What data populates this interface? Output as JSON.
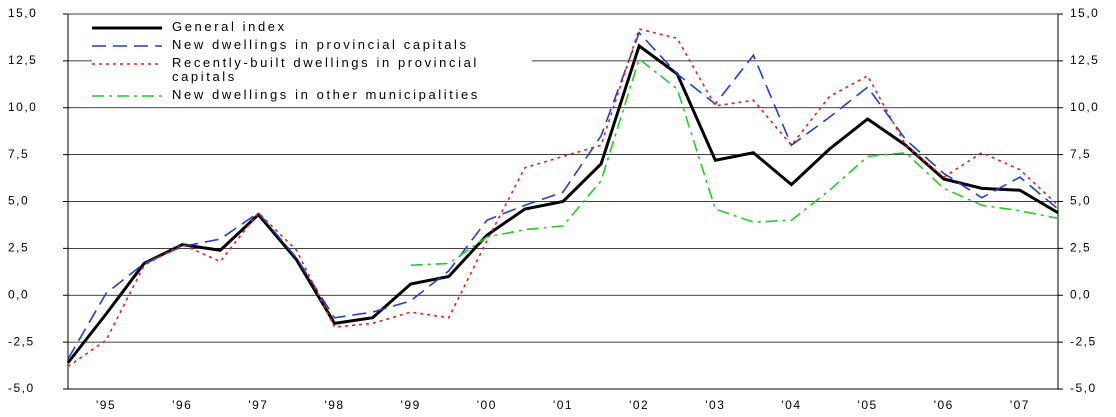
{
  "chart_data": {
    "type": "line",
    "categories": [
      null,
      "'95",
      null,
      "'96",
      null,
      "'97",
      null,
      "'98",
      null,
      "'99",
      null,
      "'00",
      null,
      "'01",
      null,
      "'02",
      null,
      "'03",
      null,
      "'04",
      null,
      "'05",
      null,
      "'06",
      null,
      "'07",
      null
    ],
    "series": [
      {
        "name": "General index",
        "color": "#000000",
        "dash": "solid",
        "values": [
          -3.6,
          -1.0,
          1.7,
          2.7,
          2.4,
          4.3,
          1.9,
          -1.5,
          -1.2,
          0.6,
          1.0,
          3.2,
          4.6,
          5.0,
          7.0,
          13.3,
          11.8,
          7.2,
          7.6,
          5.9,
          7.8,
          9.4,
          8.0,
          6.2,
          5.7,
          5.6,
          4.4
        ]
      },
      {
        "name": "New dwellings in provincial capitals",
        "color": "#1f3fd0",
        "dash": "dashed",
        "values": [
          -3.4,
          0.1,
          1.7,
          2.6,
          3.0,
          4.4,
          2.0,
          -1.2,
          -0.9,
          -0.3,
          1.3,
          4.0,
          4.8,
          5.5,
          8.5,
          14.0,
          11.8,
          10.2,
          12.8,
          8.0,
          9.5,
          11.1,
          8.3,
          6.5,
          5.2,
          6.3,
          4.6
        ]
      },
      {
        "name": "Recently-built dwellings in provincial capitals",
        "color": "#e02020",
        "dash": "dotted",
        "values": [
          -3.8,
          -2.4,
          1.6,
          2.7,
          1.8,
          4.4,
          2.4,
          -1.7,
          -1.5,
          -0.9,
          -1.2,
          2.9,
          6.8,
          7.4,
          8.0,
          14.2,
          13.7,
          10.1,
          10.4,
          8.0,
          10.6,
          11.7,
          8.0,
          6.3,
          7.6,
          6.7,
          4.8
        ]
      },
      {
        "name": "New dwellings in other municipalities",
        "color": "#22cc22",
        "dash": "dashdot",
        "values": [
          null,
          null,
          null,
          null,
          null,
          null,
          null,
          null,
          null,
          1.6,
          1.7,
          3.1,
          3.5,
          3.7,
          6.1,
          12.6,
          11.0,
          4.6,
          3.9,
          4.0,
          5.6,
          7.4,
          7.6,
          5.7,
          4.8,
          4.5,
          4.1
        ]
      }
    ],
    "ylim": [
      -5,
      15
    ],
    "yticks": [
      {
        "value": -5,
        "label": "-5,0"
      },
      {
        "value": -2.5,
        "label": "-2,5"
      },
      {
        "value": 0,
        "label": "0,0"
      },
      {
        "value": 2.5,
        "label": "2,5"
      },
      {
        "value": 5,
        "label": "5,0"
      },
      {
        "value": 7.5,
        "label": "7,5"
      },
      {
        "value": 10,
        "label": "10,0"
      },
      {
        "value": 12.5,
        "label": "12,5"
      },
      {
        "value": 15,
        "label": "15,0"
      }
    ],
    "y2lim": [
      -5,
      15
    ],
    "y2ticks": [
      {
        "value": -5,
        "label": "-5,0"
      },
      {
        "value": -2.5,
        "label": "-2,5"
      },
      {
        "value": 0,
        "label": "0,0"
      },
      {
        "value": 2.5,
        "label": "2,5"
      },
      {
        "value": 5,
        "label": "5,0"
      },
      {
        "value": 7.5,
        "label": "7,5"
      },
      {
        "value": 10,
        "label": "10,0"
      },
      {
        "value": 12.5,
        "label": "12,5"
      },
      {
        "value": 15,
        "label": "15,0"
      }
    ],
    "grid": true
  }
}
